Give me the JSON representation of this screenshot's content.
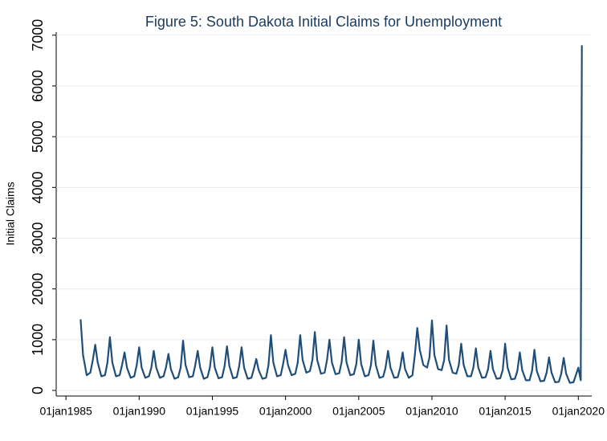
{
  "chart_data": {
    "type": "line",
    "title": "Figure 5: South Dakota Initial Claims for Unemployment",
    "y_label": "Initial Claims",
    "x": [
      "01jan1986",
      "01mar1986",
      "01jun1986",
      "01sep1986",
      "01nov1986",
      "01jan1987",
      "01mar1987",
      "01jun1987",
      "01sep1987",
      "01nov1987",
      "01jan1988",
      "01mar1988",
      "01jun1988",
      "01sep1988",
      "01nov1988",
      "01jan1989",
      "01mar1989",
      "01jun1989",
      "01sep1989",
      "01nov1989",
      "01jan1990",
      "01mar1990",
      "01jun1990",
      "01sep1990",
      "01nov1990",
      "01jan1991",
      "01mar1991",
      "01jun1991",
      "01sep1991",
      "01nov1991",
      "01jan1992",
      "01mar1992",
      "01jun1992",
      "01sep1992",
      "01nov1992",
      "01jan1993",
      "01mar1993",
      "01jun1993",
      "01sep1993",
      "01nov1993",
      "01jan1994",
      "01mar1994",
      "01jun1994",
      "01sep1994",
      "01nov1994",
      "01jan1995",
      "01mar1995",
      "01jun1995",
      "01sep1995",
      "01nov1995",
      "01jan1996",
      "01mar1996",
      "01jun1996",
      "01sep1996",
      "01nov1996",
      "01jan1997",
      "01mar1997",
      "01jun1997",
      "01sep1997",
      "01nov1997",
      "01jan1998",
      "01mar1998",
      "01jun1998",
      "01sep1998",
      "01nov1998",
      "01jan1999",
      "01mar1999",
      "01jun1999",
      "01sep1999",
      "01nov1999",
      "01jan2000",
      "01mar2000",
      "01jun2000",
      "01sep2000",
      "01nov2000",
      "01jan2001",
      "01mar2001",
      "01jun2001",
      "01sep2001",
      "01nov2001",
      "01jan2002",
      "01mar2002",
      "01jun2002",
      "01sep2002",
      "01nov2002",
      "01jan2003",
      "01mar2003",
      "01jun2003",
      "01sep2003",
      "01nov2003",
      "01jan2004",
      "01mar2004",
      "01jun2004",
      "01sep2004",
      "01nov2004",
      "01jan2005",
      "01mar2005",
      "01jun2005",
      "01sep2005",
      "01nov2005",
      "01jan2006",
      "01mar2006",
      "01jun2006",
      "01sep2006",
      "01nov2006",
      "01jan2007",
      "01mar2007",
      "01jun2007",
      "01sep2007",
      "01nov2007",
      "01jan2008",
      "01mar2008",
      "01jun2008",
      "01sep2008",
      "01nov2008",
      "01jan2009",
      "01mar2009",
      "01jun2009",
      "01sep2009",
      "01nov2009",
      "01jan2010",
      "01mar2010",
      "01jun2010",
      "01sep2010",
      "01nov2010",
      "01jan2011",
      "01mar2011",
      "01jun2011",
      "01sep2011",
      "01nov2011",
      "01jan2012",
      "01mar2012",
      "01jun2012",
      "01sep2012",
      "01nov2012",
      "01jan2013",
      "01mar2013",
      "01jun2013",
      "01sep2013",
      "01nov2013",
      "01jan2014",
      "01mar2014",
      "01jun2014",
      "01sep2014",
      "01nov2014",
      "01jan2015",
      "01mar2015",
      "01jun2015",
      "01sep2015",
      "01nov2015",
      "01jan2016",
      "01mar2016",
      "01jun2016",
      "01sep2016",
      "01nov2016",
      "01jan2017",
      "01mar2017",
      "01jun2017",
      "01sep2017",
      "01nov2017",
      "01jan2018",
      "01mar2018",
      "01jun2018",
      "01sep2018",
      "01nov2018",
      "01jan2019",
      "01mar2019",
      "01jun2019",
      "01sep2019",
      "01nov2019",
      "01jan2020",
      "01mar2020",
      "28mar2020"
    ],
    "series": [
      {
        "name": "Initial Claims",
        "color": "#1f4e79",
        "values": [
          1400,
          700,
          300,
          350,
          600,
          900,
          550,
          280,
          300,
          550,
          1050,
          550,
          280,
          300,
          500,
          750,
          450,
          250,
          280,
          500,
          850,
          450,
          250,
          280,
          450,
          780,
          450,
          250,
          280,
          450,
          720,
          420,
          230,
          260,
          450,
          980,
          500,
          260,
          280,
          500,
          780,
          450,
          230,
          260,
          450,
          850,
          450,
          240,
          260,
          480,
          870,
          480,
          240,
          260,
          480,
          850,
          450,
          230,
          250,
          420,
          620,
          400,
          230,
          250,
          500,
          1090,
          550,
          280,
          300,
          520,
          800,
          500,
          300,
          330,
          550,
          1090,
          600,
          350,
          380,
          600,
          1150,
          600,
          330,
          350,
          600,
          1000,
          550,
          320,
          340,
          560,
          1050,
          550,
          300,
          320,
          520,
          1000,
          520,
          280,
          300,
          500,
          980,
          500,
          250,
          270,
          450,
          780,
          450,
          250,
          260,
          450,
          750,
          420,
          250,
          300,
          700,
          1230,
          800,
          500,
          450,
          650,
          1380,
          700,
          420,
          400,
          600,
          1280,
          600,
          350,
          330,
          500,
          920,
          500,
          280,
          280,
          450,
          830,
          450,
          250,
          260,
          420,
          780,
          420,
          230,
          240,
          400,
          920,
          450,
          220,
          230,
          380,
          750,
          400,
          200,
          200,
          380,
          800,
          380,
          180,
          190,
          350,
          650,
          350,
          160,
          170,
          330,
          640,
          330,
          150,
          160,
          300,
          450,
          200,
          6800
        ]
      }
    ],
    "xlim": [
      "01may1984",
      "01dec2020"
    ],
    "xticks": [
      "01jan1985",
      "01jan1990",
      "01jan1995",
      "01jan2000",
      "01jan2005",
      "01jan2010",
      "01jan2015",
      "01jan2020"
    ],
    "ylim": [
      -110,
      7060
    ],
    "yticks": [
      0,
      1000,
      2000,
      3000,
      4000,
      5000,
      6000,
      7000
    ],
    "grid": true
  }
}
